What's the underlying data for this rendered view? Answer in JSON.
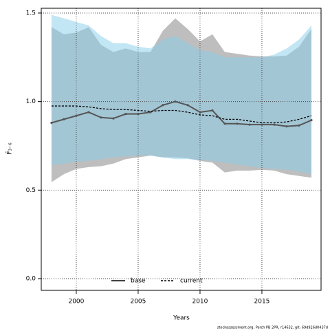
{
  "chart_data": {
    "type": "line",
    "xlabel": "Years",
    "ylabel": "F̄₃₋₆",
    "footer": "stockassessment.org, Perch PB 2PR, r14632, git: 69d926d0437d",
    "x": [
      1998,
      1999,
      2000,
      2001,
      2002,
      2003,
      2004,
      2005,
      2006,
      2007,
      2008,
      2009,
      2010,
      2011,
      2012,
      2013,
      2014,
      2015,
      2016,
      2017,
      2018,
      2019
    ],
    "series": [
      {
        "name": "base",
        "color": "#555555",
        "linestyle": "solid",
        "markers": true,
        "band_color": "rgba(110,110,110,0.45)",
        "values": [
          0.88,
          0.9,
          0.92,
          0.94,
          0.91,
          0.905,
          0.93,
          0.93,
          0.94,
          0.98,
          1.0,
          0.98,
          0.94,
          0.95,
          0.875,
          0.875,
          0.87,
          0.87,
          0.87,
          0.86,
          0.865,
          0.895
        ],
        "upper": [
          1.42,
          1.38,
          1.39,
          1.42,
          1.32,
          1.28,
          1.3,
          1.28,
          1.28,
          1.4,
          1.47,
          1.41,
          1.34,
          1.38,
          1.28,
          1.27,
          1.26,
          1.255,
          1.255,
          1.26,
          1.31,
          1.41
        ],
        "lower": [
          0.545,
          0.59,
          0.62,
          0.63,
          0.635,
          0.65,
          0.675,
          0.685,
          0.695,
          0.685,
          0.685,
          0.68,
          0.665,
          0.655,
          0.6,
          0.61,
          0.61,
          0.615,
          0.61,
          0.59,
          0.58,
          0.57
        ]
      },
      {
        "name": "current",
        "color": "#000000",
        "linestyle": "dashed",
        "markers": false,
        "band_color": "rgba(135,206,235,0.5)",
        "values": [
          0.975,
          0.975,
          0.975,
          0.97,
          0.96,
          0.955,
          0.955,
          0.95,
          0.945,
          0.95,
          0.95,
          0.94,
          0.925,
          0.92,
          0.9,
          0.9,
          0.89,
          0.88,
          0.88,
          0.885,
          0.9,
          0.92
        ],
        "upper": [
          1.49,
          1.47,
          1.45,
          1.43,
          1.37,
          1.33,
          1.33,
          1.31,
          1.3,
          1.35,
          1.37,
          1.33,
          1.29,
          1.28,
          1.25,
          1.25,
          1.25,
          1.25,
          1.265,
          1.3,
          1.35,
          1.43
        ],
        "lower": [
          0.64,
          0.65,
          0.66,
          0.665,
          0.675,
          0.685,
          0.69,
          0.695,
          0.695,
          0.685,
          0.675,
          0.675,
          0.67,
          0.665,
          0.655,
          0.645,
          0.635,
          0.625,
          0.62,
          0.615,
          0.605,
          0.59
        ]
      }
    ],
    "xlim": [
      1997.17,
      2019.78
    ],
    "xticks": [
      2000,
      2005,
      2010,
      2015
    ],
    "ylim": [
      -0.066,
      1.527
    ],
    "yticks": [
      {
        "value": 0,
        "label": "0.0"
      },
      {
        "value": 0.5,
        "label": "0.5"
      },
      {
        "value": 1,
        "label": "1.0"
      },
      {
        "value": 1.5,
        "label": "1.5"
      }
    ],
    "grid": true,
    "legend": "bottom"
  }
}
